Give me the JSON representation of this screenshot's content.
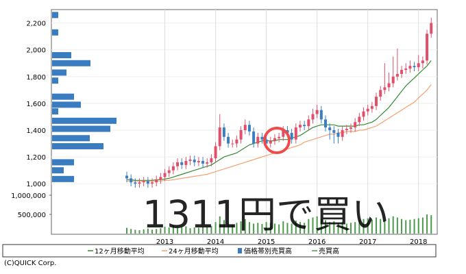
{
  "chart_data": {
    "type": "candlestick",
    "categories": [
      null,
      null,
      null,
      null,
      null,
      null,
      null,
      null,
      null,
      "2013",
      null,
      null,
      null,
      null,
      null,
      null,
      null,
      null,
      null,
      null,
      null,
      "2014",
      null,
      null,
      null,
      null,
      null,
      null,
      null,
      null,
      null,
      null,
      null,
      "2015",
      null,
      null,
      null,
      null,
      null,
      null,
      null,
      null,
      null,
      null,
      null,
      "2016",
      null,
      null,
      null,
      null,
      null,
      null,
      null,
      null,
      null,
      null,
      null,
      "2017",
      null,
      null,
      null,
      null,
      null,
      null,
      null,
      null,
      null,
      null,
      null,
      "2018",
      null,
      null,
      null
    ],
    "open": [
      1060,
      1040,
      1010,
      1000,
      1010,
      1020,
      1000,
      1010,
      1030,
      1050,
      1080,
      1100,
      1130,
      1160,
      1140,
      1170,
      1180,
      1160,
      1170,
      1150,
      1160,
      1190,
      1280,
      1420,
      1350,
      1300,
      1300,
      1330,
      1400,
      1440,
      1390,
      1300,
      1350,
      1330,
      1300,
      1320,
      1340,
      1350,
      1400,
      1380,
      1330,
      1420,
      1440,
      1430,
      1480,
      1520,
      1550,
      1480,
      1420,
      1400,
      1380,
      1350,
      1400,
      1410,
      1420,
      1460,
      1500,
      1540,
      1560,
      1580,
      1650,
      1700,
      1720,
      1750,
      1800,
      1820,
      1850,
      1860,
      1880,
      1870,
      1900,
      1920,
      2120
    ],
    "high": [
      1090,
      1070,
      1040,
      1040,
      1050,
      1050,
      1040,
      1060,
      1080,
      1110,
      1130,
      1160,
      1190,
      1190,
      1200,
      1210,
      1210,
      1200,
      1200,
      1190,
      1220,
      1310,
      1520,
      1450,
      1380,
      1330,
      1360,
      1430,
      1480,
      1470,
      1420,
      1380,
      1380,
      1360,
      1350,
      1370,
      1380,
      1430,
      1430,
      1410,
      1450,
      1470,
      1470,
      1510,
      1560,
      1590,
      1580,
      1510,
      1450,
      1430,
      1410,
      1430,
      1440,
      1450,
      1490,
      1530,
      1570,
      1590,
      1610,
      1680,
      1730,
      1900,
      1830,
      1950,
      2010,
      1880,
      1900,
      1920,
      1910,
      1960,
      1950,
      2150,
      2240
    ],
    "low": [
      1010,
      980,
      970,
      970,
      980,
      970,
      970,
      980,
      1000,
      1020,
      1050,
      1070,
      1100,
      1110,
      1110,
      1140,
      1130,
      1130,
      1120,
      1120,
      1130,
      1160,
      1250,
      1320,
      1270,
      1270,
      1270,
      1300,
      1370,
      1360,
      1270,
      1270,
      1300,
      1270,
      1270,
      1290,
      1310,
      1320,
      1350,
      1300,
      1300,
      1390,
      1400,
      1400,
      1450,
      1490,
      1450,
      1390,
      1330,
      1300,
      1300,
      1320,
      1370,
      1380,
      1390,
      1430,
      1470,
      1510,
      1530,
      1550,
      1620,
      1670,
      1690,
      1720,
      1770,
      1790,
      1820,
      1830,
      1840,
      1840,
      1860,
      1890,
      2090
    ],
    "close": [
      1040,
      1010,
      1000,
      1010,
      1020,
      1000,
      1010,
      1030,
      1050,
      1080,
      1100,
      1130,
      1160,
      1140,
      1170,
      1180,
      1160,
      1170,
      1150,
      1160,
      1190,
      1280,
      1420,
      1350,
      1300,
      1300,
      1330,
      1400,
      1440,
      1390,
      1300,
      1350,
      1330,
      1300,
      1320,
      1340,
      1350,
      1400,
      1380,
      1330,
      1420,
      1440,
      1430,
      1480,
      1520,
      1550,
      1480,
      1420,
      1400,
      1380,
      1350,
      1400,
      1410,
      1420,
      1460,
      1500,
      1540,
      1560,
      1580,
      1650,
      1700,
      1720,
      1750,
      1800,
      1820,
      1850,
      1860,
      1880,
      1870,
      1900,
      1920,
      2120,
      2200
    ],
    "up_color": "#e0506a",
    "down_color": "#3c7fc0",
    "ylim": [
      960,
      2280
    ],
    "yticks": [
      {
        "value": 1000,
        "label": "1,000"
      },
      {
        "value": 1200,
        "label": "1,200"
      },
      {
        "value": 1400,
        "label": "1,400"
      },
      {
        "value": 1600,
        "label": "1,600"
      },
      {
        "value": 1800,
        "label": "1,800"
      },
      {
        "value": 2000,
        "label": "2,000"
      },
      {
        "value": 2200,
        "label": "2,200"
      }
    ],
    "series": [
      {
        "name": "12ヶ月移動平均",
        "color": "#2e8b2e",
        "values": [
          1030,
          1030,
          1025,
          1025,
          1025,
          1025,
          1025,
          1030,
          1030,
          1035,
          1040,
          1050,
          1060,
          1070,
          1080,
          1090,
          1100,
          1110,
          1120,
          1130,
          1140,
          1160,
          1180,
          1200,
          1210,
          1220,
          1230,
          1250,
          1270,
          1290,
          1300,
          1310,
          1320,
          1320,
          1320,
          1320,
          1330,
          1330,
          1330,
          1340,
          1350,
          1360,
          1380,
          1400,
          1420,
          1430,
          1440,
          1440,
          1440,
          1440,
          1430,
          1430,
          1430,
          1430,
          1430,
          1440,
          1440,
          1450,
          1460,
          1480,
          1510,
          1540,
          1570,
          1610,
          1650,
          1690,
          1730,
          1760,
          1790,
          1820,
          1850,
          1880,
          1920
        ]
      },
      {
        "name": "24ヶ月移動平均",
        "color": "#f4a070",
        "values": [
          1020,
          1020,
          1020,
          1020,
          1020,
          1020,
          1020,
          1020,
          1020,
          1025,
          1025,
          1030,
          1035,
          1040,
          1045,
          1050,
          1055,
          1060,
          1065,
          1070,
          1080,
          1090,
          1100,
          1110,
          1120,
          1130,
          1140,
          1150,
          1160,
          1170,
          1180,
          1190,
          1200,
          1210,
          1220,
          1230,
          1240,
          1250,
          1260,
          1270,
          1280,
          1290,
          1310,
          1320,
          1330,
          1340,
          1350,
          1360,
          1370,
          1370,
          1380,
          1380,
          1390,
          1390,
          1390,
          1400,
          1400,
          1410,
          1420,
          1430,
          1450,
          1470,
          1490,
          1510,
          1530,
          1550,
          1570,
          1590,
          1610,
          1640,
          1670,
          1700,
          1740
        ]
      }
    ],
    "volume_by_price": {
      "name": "価格帯別売買高",
      "color": "#3a7cc0",
      "price_levels": [
        2260,
        2130,
        1960,
        1900,
        1830,
        1770,
        1650,
        1590,
        1540,
        1470,
        1410,
        1340,
        1280,
        1160,
        1100,
        1035
      ],
      "values": [
        90,
        90,
        280,
        560,
        210,
        90,
        320,
        420,
        90,
        940,
        850,
        550,
        750,
        320,
        170,
        320
      ]
    },
    "volume": {
      "name": "売買高",
      "color": "#4c9a4c",
      "ylim": [
        0,
        1000000
      ],
      "yticks": [
        {
          "value": 500000,
          "label": "500,000"
        },
        {
          "value": 1000000,
          "label": "1,000,000"
        }
      ],
      "values": [
        150000,
        120000,
        100000,
        90000,
        110000,
        130000,
        100000,
        120000,
        140000,
        180000,
        160000,
        200000,
        150000,
        170000,
        190000,
        140000,
        160000,
        150000,
        180000,
        170000,
        200000,
        300000,
        450000,
        350000,
        260000,
        240000,
        280000,
        320000,
        380000,
        300000,
        260000,
        280000,
        250000,
        300000,
        280000,
        260000,
        240000,
        320000,
        280000,
        260000,
        340000,
        300000,
        280000,
        380000,
        420000,
        450000,
        380000,
        350000,
        300000,
        320000,
        280000,
        300000,
        260000,
        280000,
        300000,
        350000,
        380000,
        400000,
        360000,
        420000,
        380000,
        350000,
        400000,
        450000,
        420000,
        380000,
        350000,
        360000,
        380000,
        400000,
        420000,
        500000,
        480000
      ]
    },
    "annotation": "1311円で買い",
    "annotation_color": "#f06a7a"
  },
  "footer": "(C)QUICK Corp."
}
